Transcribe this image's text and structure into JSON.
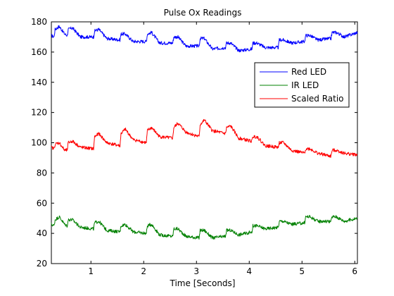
{
  "chart_data": {
    "type": "line",
    "title": "Pulse Ox Readings",
    "xlabel": "Time [Seconds]",
    "ylabel": "",
    "xlim": [
      0.25,
      6.05
    ],
    "ylim": [
      20,
      180
    ],
    "xticks": [
      1,
      2,
      3,
      4,
      5,
      6
    ],
    "yticks": [
      20,
      40,
      60,
      80,
      100,
      120,
      140,
      160,
      180
    ],
    "grid": false,
    "legend_position": "top-right",
    "series": [
      {
        "name": "Red LED",
        "color": "#0000ff",
        "x": [
          0.25,
          0.3,
          0.32,
          0.4,
          0.5,
          0.55,
          0.57,
          0.65,
          0.8,
          1.05,
          1.07,
          1.15,
          1.3,
          1.55,
          1.57,
          1.65,
          1.8,
          2.05,
          2.07,
          2.15,
          2.3,
          2.55,
          2.57,
          2.65,
          2.8,
          3.05,
          3.07,
          3.15,
          3.3,
          3.55,
          3.57,
          3.65,
          3.8,
          4.05,
          4.07,
          4.15,
          4.3,
          4.55,
          4.57,
          4.65,
          4.8,
          5.05,
          5.07,
          5.15,
          5.3,
          5.55,
          5.57,
          5.65,
          5.8,
          6.05
        ],
        "y": [
          171,
          170,
          175,
          177,
          172,
          171,
          175,
          176,
          170,
          170,
          174,
          175,
          169,
          168,
          172,
          172,
          167,
          167,
          172,
          173,
          166,
          166,
          170,
          170,
          164,
          164,
          169,
          169,
          162,
          163,
          166,
          166,
          161,
          162,
          166,
          166,
          163,
          163,
          168,
          168,
          166,
          167,
          171,
          171,
          168,
          169,
          173,
          173,
          170,
          173
        ]
      },
      {
        "name": "IR LED",
        "color": "#008000",
        "x": [
          0.25,
          0.3,
          0.32,
          0.4,
          0.5,
          0.55,
          0.57,
          0.65,
          0.8,
          1.05,
          1.07,
          1.15,
          1.3,
          1.55,
          1.57,
          1.65,
          1.8,
          2.05,
          2.07,
          2.15,
          2.3,
          2.55,
          2.57,
          2.65,
          2.8,
          3.05,
          3.07,
          3.15,
          3.3,
          3.55,
          3.57,
          3.65,
          3.8,
          4.05,
          4.07,
          4.15,
          4.3,
          4.55,
          4.57,
          4.65,
          4.8,
          5.05,
          5.07,
          5.15,
          5.3,
          5.55,
          5.57,
          5.65,
          5.8,
          6.05
        ],
        "y": [
          46,
          45,
          49,
          51,
          46,
          45,
          49,
          49,
          44,
          43,
          47,
          48,
          42,
          41,
          45,
          46,
          41,
          40,
          45,
          46,
          39,
          38,
          43,
          43,
          38,
          37,
          42,
          42,
          37,
          38,
          42,
          42,
          39,
          41,
          45,
          45,
          43,
          44,
          48,
          48,
          46,
          47,
          51,
          51,
          48,
          48,
          51,
          51,
          48,
          50
        ]
      },
      {
        "name": "Scaled Ratio",
        "color": "#ff0000",
        "x": [
          0.25,
          0.3,
          0.32,
          0.4,
          0.5,
          0.55,
          0.57,
          0.65,
          0.8,
          1.05,
          1.07,
          1.15,
          1.3,
          1.55,
          1.57,
          1.65,
          1.8,
          2.05,
          2.07,
          2.15,
          2.3,
          2.55,
          2.57,
          2.65,
          2.8,
          3.05,
          3.07,
          3.15,
          3.3,
          3.55,
          3.57,
          3.65,
          3.8,
          4.05,
          4.07,
          4.15,
          4.3,
          4.55,
          4.57,
          4.65,
          4.8,
          5.05,
          5.07,
          5.15,
          5.3,
          5.55,
          5.57,
          5.65,
          5.8,
          6.05
        ],
        "y": [
          97,
          96,
          99,
          100,
          95,
          95,
          100,
          101,
          97,
          96,
          104,
          106,
          100,
          98,
          106,
          109,
          102,
          100,
          108,
          110,
          104,
          103,
          110,
          113,
          107,
          104,
          112,
          115,
          108,
          106,
          110,
          111,
          103,
          101,
          104,
          104,
          98,
          97,
          100,
          100,
          95,
          93,
          96,
          96,
          93,
          91,
          95,
          95,
          93,
          92
        ]
      }
    ]
  }
}
